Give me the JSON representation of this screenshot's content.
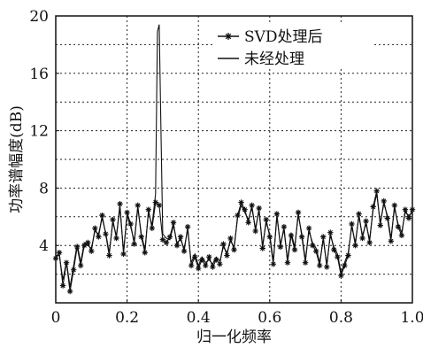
{
  "chart_data": {
    "type": "line",
    "xlabel": "归一化频率",
    "ylabel": "功率谱幅度(dB)",
    "xlim": [
      0,
      1.0
    ],
    "ylim": [
      0,
      20
    ],
    "xticks": [
      0,
      0.2,
      0.4,
      0.6,
      0.8,
      1.0
    ],
    "xtick_labels": [
      "0",
      "0.2",
      "0.4",
      "0.6",
      "0.8",
      "1.0"
    ],
    "yticks": [
      4,
      8,
      12,
      16,
      20
    ],
    "ytick_labels": [
      "4",
      "8",
      "12",
      "16",
      "20"
    ],
    "grid": true,
    "legend_position": "top-right",
    "series": [
      {
        "name": "SVD处理后",
        "marker": "star",
        "color": "#111111",
        "x": [
          0.0,
          0.01,
          0.02,
          0.03,
          0.04,
          0.05,
          0.06,
          0.07,
          0.08,
          0.09,
          0.1,
          0.11,
          0.12,
          0.13,
          0.14,
          0.15,
          0.16,
          0.17,
          0.18,
          0.19,
          0.2,
          0.21,
          0.22,
          0.23,
          0.24,
          0.25,
          0.26,
          0.27,
          0.28,
          0.29,
          0.3,
          0.31,
          0.32,
          0.33,
          0.34,
          0.35,
          0.36,
          0.37,
          0.38,
          0.39,
          0.4,
          0.41,
          0.42,
          0.43,
          0.44,
          0.45,
          0.46,
          0.47,
          0.48,
          0.49,
          0.5,
          0.51,
          0.52,
          0.53,
          0.54,
          0.55,
          0.56,
          0.57,
          0.58,
          0.59,
          0.6,
          0.61,
          0.62,
          0.63,
          0.64,
          0.65,
          0.66,
          0.67,
          0.68,
          0.69,
          0.7,
          0.71,
          0.72,
          0.73,
          0.74,
          0.75,
          0.76,
          0.77,
          0.78,
          0.79,
          0.8,
          0.81,
          0.82,
          0.83,
          0.84,
          0.85,
          0.86,
          0.87,
          0.88,
          0.89,
          0.9,
          0.91,
          0.92,
          0.93,
          0.94,
          0.95,
          0.96,
          0.97,
          0.98,
          0.99,
          1.0
        ],
        "y": [
          3.1,
          3.5,
          1.2,
          2.8,
          0.8,
          2.3,
          3.9,
          2.6,
          4.0,
          4.2,
          3.6,
          5.2,
          4.6,
          6.1,
          4.8,
          3.3,
          5.8,
          4.5,
          6.9,
          3.4,
          6.3,
          5.5,
          4.1,
          6.8,
          4.6,
          3.5,
          6.5,
          5.2,
          7.0,
          6.8,
          4.4,
          4.2,
          4.6,
          5.6,
          4.0,
          4.6,
          3.6,
          5.3,
          2.6,
          3.2,
          2.4,
          3.0,
          2.6,
          3.2,
          2.5,
          3.0,
          2.7,
          4.1,
          3.3,
          4.5,
          3.7,
          6.1,
          7.0,
          6.5,
          5.6,
          6.8,
          5.0,
          6.6,
          3.8,
          5.8,
          4.6,
          2.7,
          6.2,
          3.9,
          5.3,
          2.8,
          4.7,
          3.7,
          6.3,
          4.6,
          2.8,
          5.2,
          4.0,
          3.6,
          2.6,
          4.6,
          2.5,
          4.9,
          3.7,
          3.2,
          1.9,
          2.6,
          3.3,
          5.5,
          4.0,
          6.2,
          4.5,
          5.7,
          4.2,
          6.7,
          7.8,
          5.4,
          7.1,
          5.9,
          4.3,
          6.8,
          5.3,
          4.7,
          6.5,
          5.9,
          6.5
        ]
      },
      {
        "name": "未经处理",
        "marker": "none",
        "color": "#111111",
        "x": [
          0.0,
          0.01,
          0.02,
          0.03,
          0.04,
          0.05,
          0.06,
          0.07,
          0.08,
          0.09,
          0.1,
          0.11,
          0.12,
          0.13,
          0.14,
          0.15,
          0.16,
          0.17,
          0.18,
          0.19,
          0.2,
          0.21,
          0.22,
          0.23,
          0.24,
          0.25,
          0.26,
          0.27,
          0.28,
          0.285,
          0.29,
          0.295,
          0.3,
          0.31,
          0.32,
          0.33,
          0.34,
          0.35,
          0.36,
          0.37,
          0.38,
          0.39,
          0.4,
          0.41,
          0.42,
          0.43,
          0.44,
          0.45,
          0.46,
          0.47,
          0.48,
          0.49,
          0.5,
          0.51,
          0.52,
          0.53,
          0.54,
          0.55,
          0.56,
          0.57,
          0.58,
          0.59,
          0.6,
          0.61,
          0.62,
          0.63,
          0.64,
          0.65,
          0.66,
          0.67,
          0.68,
          0.69,
          0.7,
          0.71,
          0.72,
          0.73,
          0.74,
          0.75,
          0.76,
          0.77,
          0.78,
          0.79,
          0.8,
          0.81,
          0.82,
          0.83,
          0.84,
          0.85,
          0.86,
          0.87,
          0.88,
          0.89,
          0.9,
          0.91,
          0.92,
          0.93,
          0.94,
          0.95,
          0.96,
          0.97,
          0.98,
          0.99,
          1.0
        ],
        "y": [
          3.3,
          3.3,
          1.6,
          2.9,
          1.1,
          2.6,
          4.1,
          2.8,
          4.2,
          4.0,
          3.8,
          5.0,
          4.8,
          5.9,
          4.9,
          3.5,
          5.6,
          4.7,
          6.6,
          3.6,
          6.1,
          5.3,
          4.3,
          6.6,
          4.8,
          3.7,
          6.3,
          5.4,
          7.6,
          18.9,
          19.4,
          12.0,
          4.8,
          4.5,
          4.4,
          5.4,
          4.2,
          4.4,
          3.8,
          5.1,
          2.8,
          3.4,
          2.6,
          3.2,
          2.8,
          3.0,
          2.7,
          3.2,
          2.9,
          3.9,
          3.5,
          4.3,
          3.9,
          5.9,
          6.8,
          6.3,
          5.8,
          6.6,
          5.2,
          6.4,
          4.0,
          5.6,
          4.8,
          2.9,
          6.0,
          4.1,
          5.1,
          3.0,
          4.9,
          3.9,
          6.1,
          4.8,
          3.0,
          5.0,
          4.2,
          3.8,
          2.8,
          4.4,
          2.7,
          4.7,
          3.9,
          3.4,
          2.1,
          2.8,
          3.5,
          5.3,
          4.2,
          6.0,
          4.7,
          5.5,
          4.4,
          6.5,
          7.6,
          5.6,
          6.9,
          6.1,
          4.5,
          6.6,
          5.5,
          4.9,
          6.3,
          6.1,
          6.3
        ]
      }
    ]
  }
}
